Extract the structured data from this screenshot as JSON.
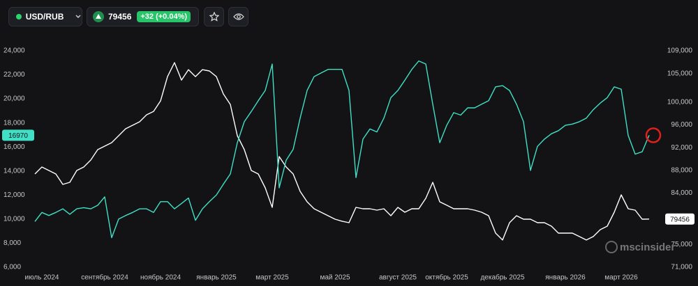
{
  "toolbar": {
    "change": "+32 (+0.04%)"
  },
  "watermark": "mscinsider",
  "chart_data": {
    "type": "line",
    "categories": [
      null,
      "июль 2024",
      null,
      null,
      null,
      null,
      null,
      null,
      null,
      null,
      "сентябрь 2024",
      null,
      null,
      null,
      null,
      null,
      null,
      null,
      "ноябрь 2024",
      null,
      null,
      null,
      null,
      null,
      null,
      null,
      "январь 2025",
      null,
      null,
      null,
      null,
      null,
      null,
      null,
      "март 2025",
      null,
      null,
      null,
      null,
      null,
      null,
      null,
      null,
      "май 2025",
      null,
      null,
      null,
      null,
      null,
      null,
      null,
      null,
      "август 2025",
      null,
      null,
      null,
      null,
      null,
      null,
      "октябрь 2025",
      null,
      null,
      null,
      null,
      null,
      null,
      null,
      "декабрь 2025",
      null,
      null,
      null,
      null,
      null,
      null,
      null,
      null,
      "январь 2026",
      null,
      null,
      null,
      null,
      null,
      null,
      null,
      "март 2026",
      null,
      null,
      null,
      null
    ],
    "ylim": [
      5360,
      24750
    ],
    "yticks": [
      {
        "value": 6000,
        "label": "6,000"
      },
      {
        "value": 8000,
        "label": "8,000"
      },
      {
        "value": 10000,
        "label": "10,000"
      },
      {
        "value": 12000,
        "label": "12,000"
      },
      {
        "value": 14000,
        "label": "14,000"
      },
      {
        "value": 16000,
        "label": "16,000"
      },
      {
        "value": 18000,
        "label": "18,000"
      },
      {
        "value": 20000,
        "label": "20,000"
      },
      {
        "value": 22000,
        "label": "22,000"
      },
      {
        "value": 24000,
        "label": "24,000"
      }
    ],
    "y2lim": [
      69650,
      110600
    ],
    "y2ticks": [
      {
        "value": 71000,
        "label": "71,000"
      },
      {
        "value": 75000,
        "label": "75,000"
      },
      {
        "value": 79000,
        "label": "79,000"
      },
      {
        "value": 84000,
        "label": "84,000"
      },
      {
        "value": 88000,
        "label": "88,000"
      },
      {
        "value": 92000,
        "label": "92,000"
      },
      {
        "value": 96000,
        "label": "96,000"
      },
      {
        "value": 100000,
        "label": "100,000"
      },
      {
        "value": 105000,
        "label": "105,000"
      },
      {
        "value": 109000,
        "label": "109,000"
      }
    ],
    "series": [
      {
        "name": "USD/RUB",
        "color": "#ffffff",
        "axis": "y2",
        "values": [
          87380,
          88600,
          87990,
          87380,
          85540,
          85910,
          87990,
          88600,
          89820,
          91650,
          92260,
          92870,
          94100,
          95320,
          95930,
          96540,
          97760,
          98370,
          100210,
          104480,
          106930,
          103870,
          105700,
          104480,
          105700,
          105460,
          104480,
          101430,
          99590,
          94100,
          91650,
          87990,
          87380,
          84930,
          81510,
          90430,
          88600,
          87380,
          84320,
          82490,
          81260,
          80650,
          80040,
          79430,
          79070,
          78820,
          81510,
          81260,
          81260,
          81020,
          81260,
          80040,
          81510,
          80650,
          81260,
          81260,
          83100,
          85910,
          82490,
          81880,
          81260,
          81260,
          81260,
          81020,
          80650,
          80040,
          76990,
          75770,
          78820,
          80040,
          79430,
          79430,
          78820,
          78820,
          78210,
          76990,
          76990,
          76990,
          76380,
          75770,
          76380,
          77600,
          78210,
          80650,
          83710,
          81260,
          81020,
          79430,
          79456
        ]
      },
      {
        "color": "#3fe0c5",
        "values": [
          9800,
          10550,
          10300,
          10550,
          10850,
          10400,
          10850,
          10950,
          10850,
          11150,
          11850,
          8450,
          10000,
          10300,
          10550,
          10850,
          10850,
          10550,
          11450,
          11450,
          10850,
          11300,
          11750,
          9900,
          10850,
          11450,
          12000,
          12900,
          13750,
          16350,
          18100,
          18950,
          19850,
          20700,
          22900,
          12600,
          14900,
          15800,
          18400,
          20700,
          21850,
          22150,
          22450,
          22450,
          22450,
          20700,
          13450,
          16650,
          17500,
          17250,
          18400,
          20100,
          20700,
          21550,
          22450,
          23150,
          22900,
          19550,
          16350,
          17800,
          18850,
          18650,
          19250,
          19250,
          19550,
          19850,
          21000,
          21100,
          20700,
          19550,
          18100,
          14050,
          16050,
          16650,
          17100,
          17350,
          17800,
          17900,
          18100,
          18400,
          19100,
          19650,
          20100,
          21000,
          20800,
          16950,
          15400,
          15600,
          16970
        ]
      }
    ]
  }
}
